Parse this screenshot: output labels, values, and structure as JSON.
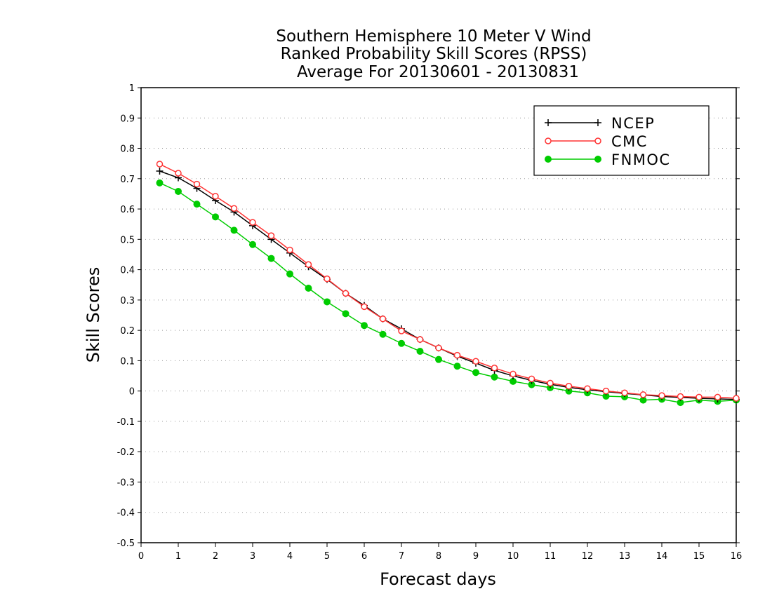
{
  "chart_data": {
    "type": "line",
    "title_lines": [
      "Southern Hemisphere 10 Meter V Wind",
      "Ranked Probability Skill Scores (RPSS)",
      "Average For 20130601 - 20130831"
    ],
    "xlabel": "Forecast days",
    "ylabel": "Skill Scores",
    "xlim": [
      0,
      16
    ],
    "ylim": [
      -0.5,
      1
    ],
    "xticks": [
      "0",
      "1",
      "2",
      "3",
      "4",
      "5",
      "6",
      "7",
      "8",
      "9",
      "10",
      "11",
      "12",
      "13",
      "14",
      "15",
      "16"
    ],
    "yticks": [
      "1",
      "0.9",
      "0.8",
      "0.7",
      "0.6",
      "0.5",
      "0.4",
      "0.3",
      "0.2",
      "0.1",
      "0",
      "-0.1",
      "-0.2",
      "-0.3",
      "-0.4",
      "-0.5"
    ],
    "grid": true,
    "legend_position": "top-right",
    "x": [
      0.5,
      1,
      1.5,
      2,
      2.5,
      3,
      3.5,
      4,
      4.5,
      5,
      5.5,
      6,
      6.5,
      7,
      7.5,
      8,
      8.5,
      9,
      9.5,
      10,
      10.5,
      11,
      11.5,
      12,
      12.5,
      13,
      13.5,
      14,
      14.5,
      15,
      15.5,
      16
    ],
    "series": [
      {
        "name": "NCEP",
        "color": "#000000",
        "marker": "plus",
        "values": [
          0.725,
          0.703,
          0.668,
          0.628,
          0.59,
          0.545,
          0.5,
          0.455,
          0.41,
          0.368,
          0.322,
          0.282,
          0.238,
          0.205,
          0.17,
          0.142,
          0.115,
          0.092,
          0.068,
          0.05,
          0.035,
          0.022,
          0.012,
          0.004,
          -0.002,
          -0.008,
          -0.013,
          -0.018,
          -0.021,
          -0.024,
          -0.026,
          -0.028
        ]
      },
      {
        "name": "CMC",
        "color": "#ff3333",
        "marker": "open-circle",
        "values": [
          0.748,
          0.718,
          0.682,
          0.642,
          0.602,
          0.556,
          0.512,
          0.465,
          0.417,
          0.37,
          0.322,
          0.278,
          0.238,
          0.198,
          0.17,
          0.142,
          0.118,
          0.098,
          0.076,
          0.056,
          0.04,
          0.026,
          0.016,
          0.008,
          0.0,
          -0.006,
          -0.012,
          -0.015,
          -0.018,
          -0.02,
          -0.02,
          -0.024
        ]
      },
      {
        "name": "FNMOC",
        "color": "#00cc00",
        "marker": "filled-circle",
        "values": [
          0.686,
          0.658,
          0.616,
          0.574,
          0.53,
          0.483,
          0.437,
          0.386,
          0.339,
          0.294,
          0.255,
          0.216,
          0.187,
          0.157,
          0.131,
          0.104,
          0.082,
          0.061,
          0.046,
          0.032,
          0.021,
          0.011,
          0.0,
          -0.006,
          -0.017,
          -0.019,
          -0.03,
          -0.027,
          -0.038,
          -0.03,
          -0.034,
          -0.03
        ]
      }
    ]
  }
}
